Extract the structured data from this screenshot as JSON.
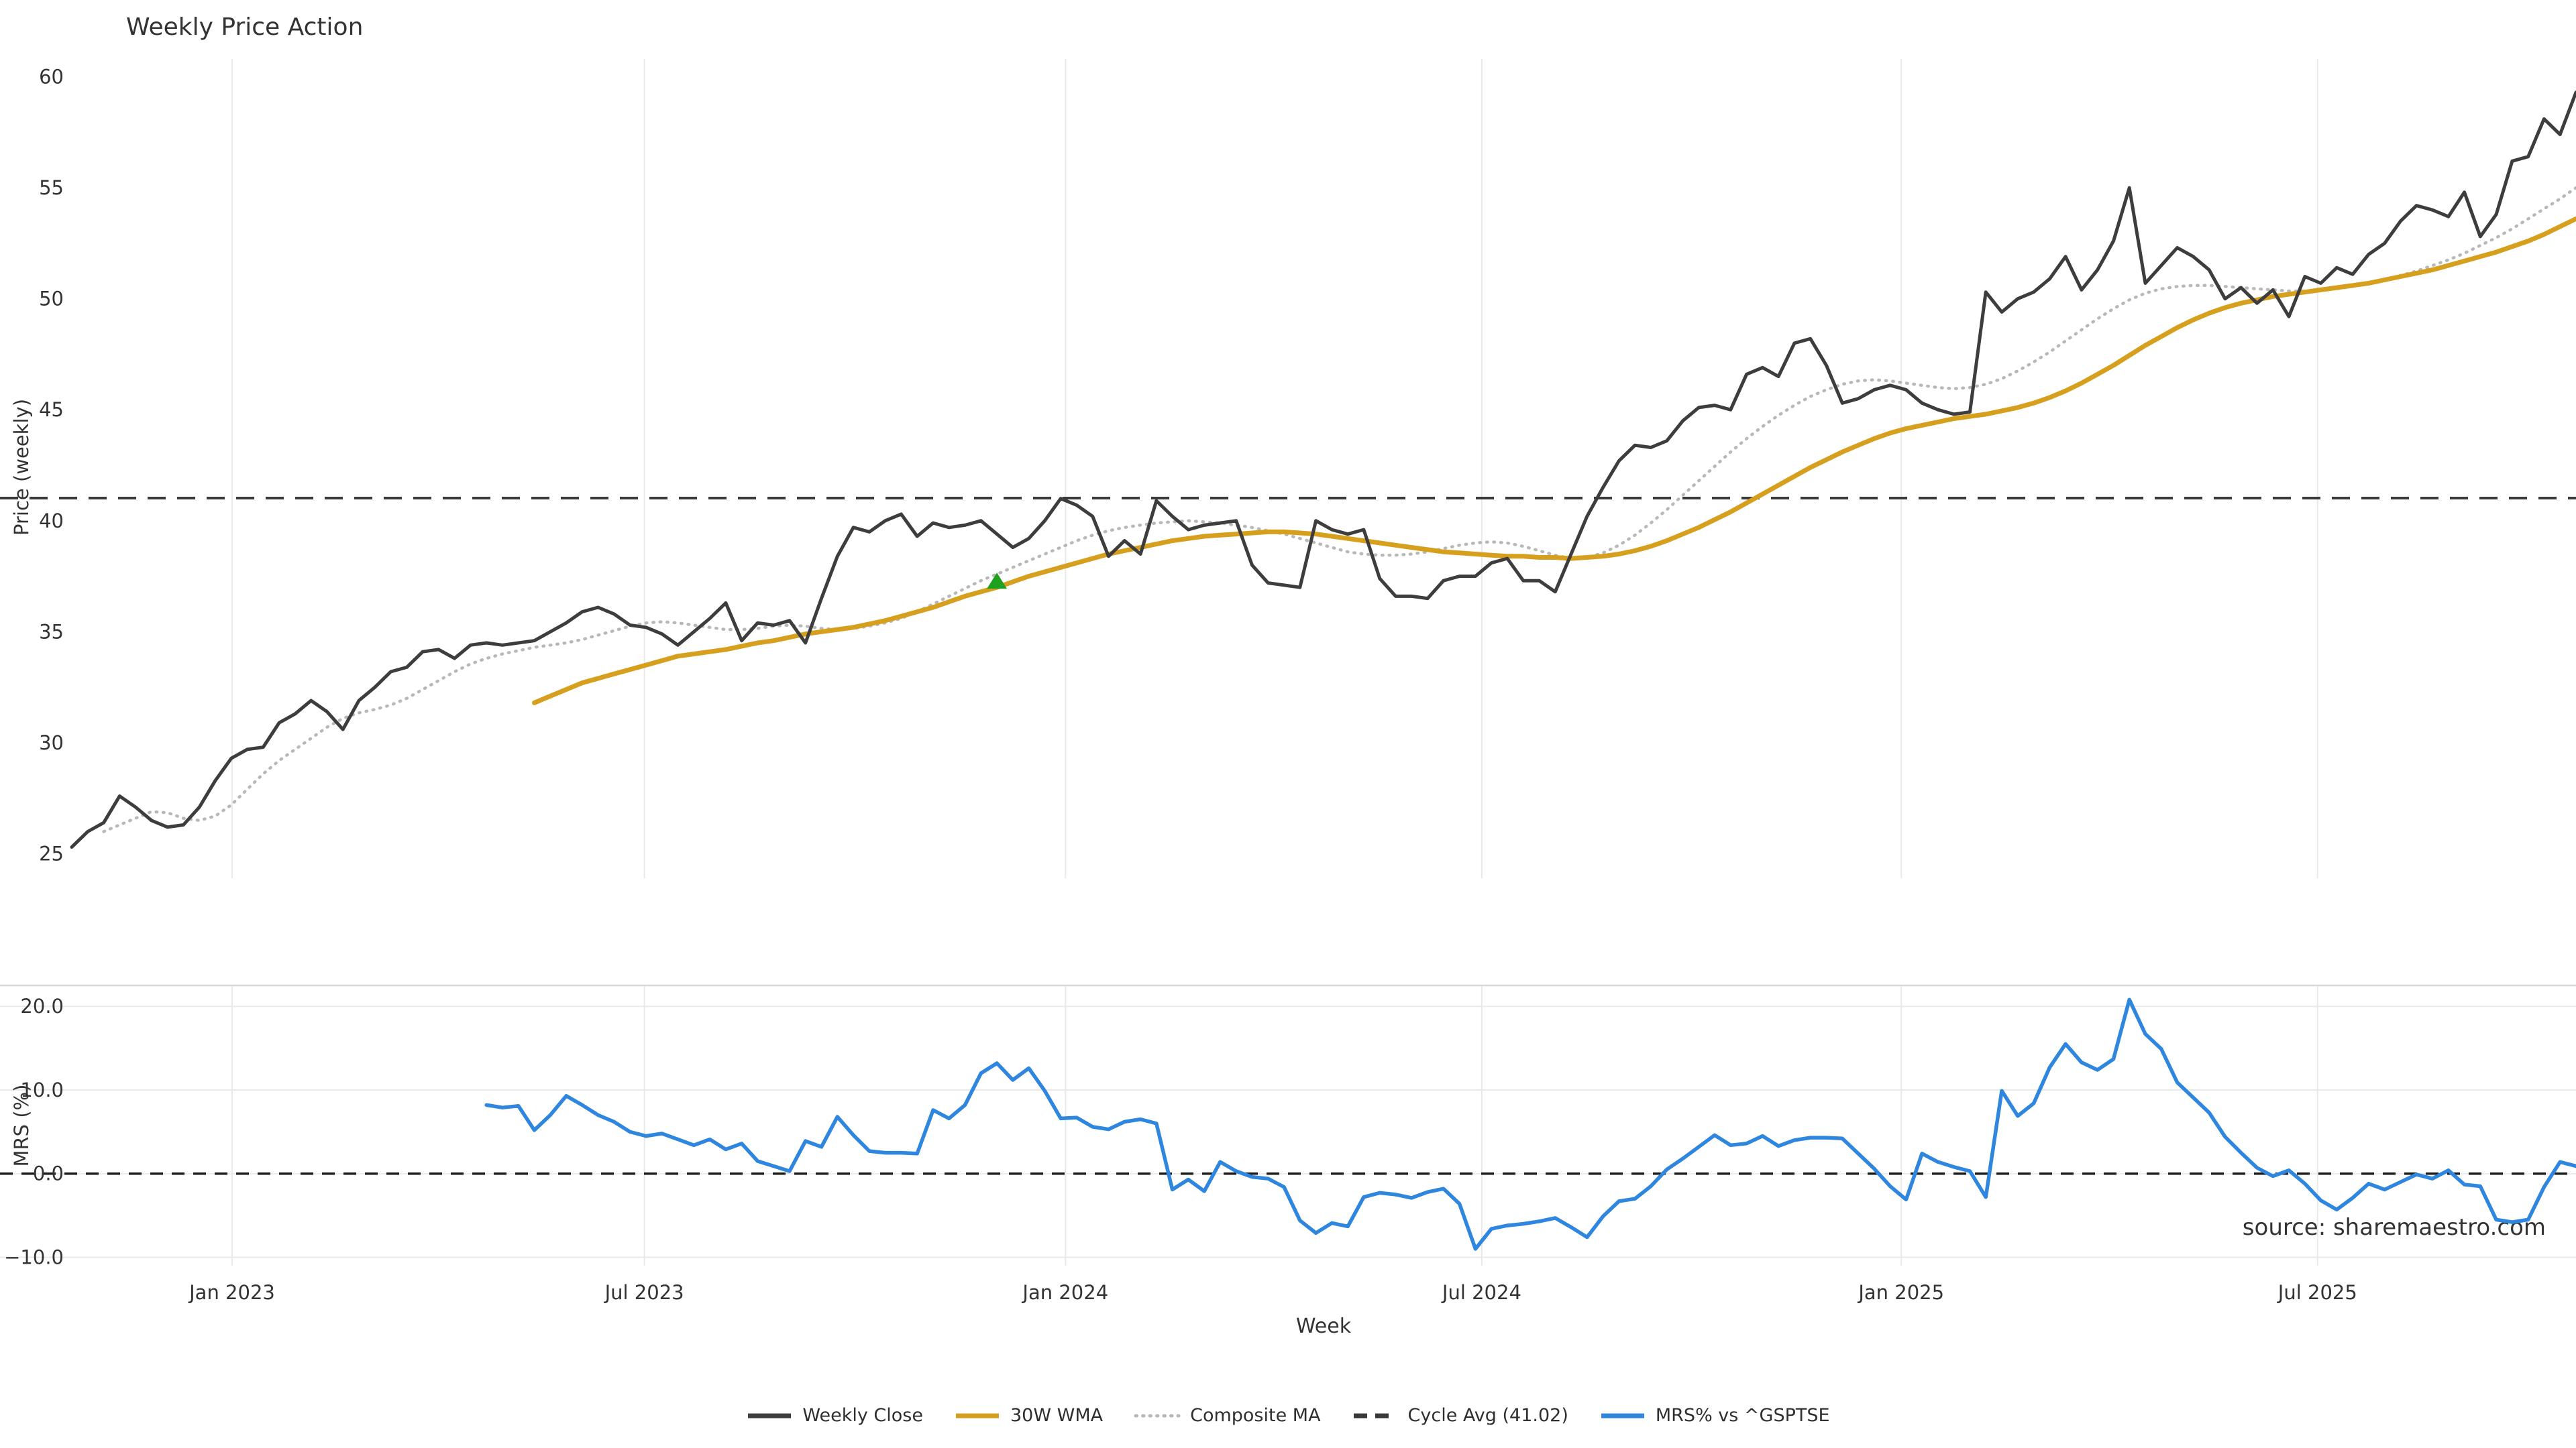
{
  "title": "Weekly Price Action",
  "watermark": "source: sharemaestro.com",
  "axis_labels": {
    "x": "Week",
    "y_top": "Price (weekly)",
    "y_bottom": "MRS (%)"
  },
  "colors": {
    "weekly_close": "#3d3d3d",
    "wma": "#d6a01e",
    "composite": "#b8b8b8",
    "cycle_avg": "#3a3a3a",
    "mrs": "#2e86de",
    "marker_green": "#1fa01f",
    "grid": "#e9e9e9",
    "spine": "#d8d8d8",
    "tick_text": "#333333",
    "watermark": "#9b9b9b"
  },
  "legend": [
    {
      "label": "Weekly Close",
      "color": "#3d3d3d",
      "style": "solid"
    },
    {
      "label": "30W WMA",
      "color": "#d6a01e",
      "style": "solid"
    },
    {
      "label": "Composite MA",
      "color": "#b8b8b8",
      "style": "dotted"
    },
    {
      "label": "Cycle Avg (41.02)",
      "color": "#3a3a3a",
      "style": "dashed"
    },
    {
      "label": "MRS% vs ^GSPTSE",
      "color": "#2e86de",
      "style": "solid"
    }
  ],
  "chart_data": [
    {
      "type": "line",
      "panel": "price",
      "title": "Weekly Price Action",
      "xlabel": "",
      "ylabel": "Price (weekly)",
      "weeks_total": 158,
      "x_start": "late Oct 2022, weekly steps",
      "ylim": [
        23.9,
        60.8
      ],
      "yticks": [
        25,
        30,
        35,
        40,
        45,
        50,
        55,
        60
      ],
      "xticks": [
        {
          "week": 10.05,
          "label": "Jan 2023"
        },
        {
          "week": 35.9,
          "label": "Jul 2023"
        },
        {
          "week": 62.3,
          "label": "Jan 2024"
        },
        {
          "week": 88.4,
          "label": "Jul 2024"
        },
        {
          "week": 114.7,
          "label": "Jan 2025"
        },
        {
          "week": 140.8,
          "label": "Jul 2025"
        }
      ],
      "grid": "vertical-only",
      "cycle_avg": 41.02,
      "buy_marker": {
        "week": 58,
        "value": 37.3,
        "shape": "triangle-up",
        "color": "#1fa01f"
      },
      "series": [
        {
          "name": "Weekly Close",
          "start_week": 0,
          "values": [
            25.3,
            26.0,
            26.4,
            27.6,
            27.1,
            26.5,
            26.2,
            26.3,
            27.1,
            28.3,
            29.3,
            29.7,
            29.8,
            30.9,
            31.3,
            31.9,
            31.4,
            30.6,
            31.9,
            32.5,
            33.2,
            33.4,
            34.1,
            34.2,
            33.8,
            34.4,
            34.5,
            34.4,
            34.5,
            34.6,
            35.0,
            35.4,
            35.9,
            36.1,
            35.8,
            35.3,
            35.2,
            34.9,
            34.4,
            35.0,
            35.6,
            36.3,
            34.6,
            35.4,
            35.3,
            35.5,
            34.5,
            36.5,
            38.4,
            39.7,
            39.5,
            40.0,
            40.3,
            39.3,
            39.9,
            39.7,
            39.8,
            40.0,
            39.4,
            38.8,
            39.2,
            40.0,
            41.0,
            40.7,
            40.2,
            38.4,
            39.1,
            38.5,
            40.9,
            40.2,
            39.6,
            39.8,
            39.9,
            40.0,
            38.0,
            37.2,
            37.1,
            37.0,
            40.0,
            39.6,
            39.4,
            39.6,
            37.4,
            36.6,
            36.6,
            36.5,
            37.3,
            37.5,
            37.5,
            38.1,
            38.3,
            37.3,
            37.3,
            36.8,
            38.5,
            40.2,
            41.5,
            42.7,
            43.4,
            43.3,
            43.6,
            44.5,
            45.1,
            45.2,
            45.0,
            46.6,
            46.9,
            46.5,
            48.0,
            48.2,
            47.0,
            45.3,
            45.5,
            45.9,
            46.1,
            45.9,
            45.3,
            45.0,
            44.8,
            44.9,
            50.3,
            49.4,
            50.0,
            50.3,
            50.9,
            51.9,
            50.4,
            51.3,
            52.6,
            55.0,
            50.7,
            51.5,
            52.3,
            51.9,
            51.3,
            50.0,
            50.5,
            49.8,
            50.4,
            49.2,
            51.0,
            50.7,
            51.4,
            51.1,
            52.0,
            52.5,
            53.5,
            54.2,
            54.0,
            53.7,
            54.8,
            52.8,
            53.8,
            56.2,
            56.4,
            58.1,
            57.4,
            59.3
          ]
        },
        {
          "name": "30W WMA",
          "start_week": 29,
          "values": [
            31.8,
            32.1,
            32.4,
            32.7,
            32.9,
            33.1,
            33.3,
            33.5,
            33.7,
            33.9,
            34.0,
            34.1,
            34.2,
            34.35,
            34.5,
            34.6,
            34.75,
            34.9,
            35.0,
            35.1,
            35.2,
            35.35,
            35.5,
            35.7,
            35.9,
            36.1,
            36.35,
            36.6,
            36.8,
            37.0,
            37.25,
            37.5,
            37.7,
            37.9,
            38.1,
            38.3,
            38.5,
            38.65,
            38.8,
            38.95,
            39.1,
            39.2,
            39.3,
            39.35,
            39.4,
            39.45,
            39.5,
            39.5,
            39.45,
            39.4,
            39.3,
            39.2,
            39.1,
            39.0,
            38.9,
            38.8,
            38.7,
            38.6,
            38.55,
            38.5,
            38.45,
            38.4,
            38.4,
            38.35,
            38.35,
            38.3,
            38.35,
            38.4,
            38.5,
            38.65,
            38.85,
            39.1,
            39.4,
            39.7,
            40.05,
            40.4,
            40.8,
            41.2,
            41.6,
            42.0,
            42.4,
            42.75,
            43.1,
            43.4,
            43.7,
            43.95,
            44.15,
            44.3,
            44.45,
            44.6,
            44.7,
            44.8,
            44.95,
            45.1,
            45.3,
            45.55,
            45.85,
            46.2,
            46.6,
            47.0,
            47.45,
            47.9,
            48.3,
            48.7,
            49.05,
            49.35,
            49.6,
            49.8,
            49.95,
            50.1,
            50.2,
            50.3,
            50.4,
            50.5,
            50.6,
            50.7,
            50.85,
            51.0,
            51.15,
            51.3,
            51.5,
            51.7,
            51.9,
            52.1,
            52.35,
            52.6,
            52.9,
            53.25,
            53.6
          ]
        },
        {
          "name": "Composite MA",
          "start_week": 2,
          "values": [
            26.0,
            26.3,
            26.6,
            26.9,
            26.85,
            26.6,
            26.5,
            26.7,
            27.2,
            27.9,
            28.6,
            29.2,
            29.7,
            30.2,
            30.7,
            31.1,
            31.35,
            31.5,
            31.7,
            32.0,
            32.4,
            32.8,
            33.2,
            33.55,
            33.8,
            34.0,
            34.15,
            34.3,
            34.4,
            34.5,
            34.65,
            34.85,
            35.05,
            35.25,
            35.4,
            35.45,
            35.4,
            35.3,
            35.2,
            35.1,
            35.1,
            35.15,
            35.25,
            35.3,
            35.25,
            35.15,
            35.1,
            35.15,
            35.25,
            35.4,
            35.6,
            35.9,
            36.25,
            36.6,
            36.95,
            37.3,
            37.6,
            37.9,
            38.2,
            38.5,
            38.8,
            39.1,
            39.35,
            39.55,
            39.7,
            39.8,
            39.9,
            39.95,
            40.0,
            39.95,
            39.9,
            39.8,
            39.7,
            39.55,
            39.4,
            39.2,
            39.0,
            38.8,
            38.6,
            38.5,
            38.45,
            38.45,
            38.5,
            38.6,
            38.75,
            38.9,
            39.0,
            39.05,
            39.0,
            38.85,
            38.65,
            38.45,
            38.3,
            38.35,
            38.55,
            38.9,
            39.35,
            39.9,
            40.5,
            41.15,
            41.8,
            42.45,
            43.1,
            43.7,
            44.25,
            44.75,
            45.2,
            45.6,
            45.9,
            46.15,
            46.3,
            46.35,
            46.3,
            46.2,
            46.1,
            46.0,
            45.95,
            46.0,
            46.15,
            46.4,
            46.75,
            47.15,
            47.6,
            48.1,
            48.6,
            49.1,
            49.55,
            49.95,
            50.25,
            50.45,
            50.55,
            50.6,
            50.6,
            50.55,
            50.5,
            50.45,
            50.4,
            50.35,
            50.35,
            50.4,
            50.45,
            50.55,
            50.7,
            50.85,
            51.05,
            51.25,
            51.5,
            51.75,
            52.05,
            52.4,
            52.75,
            53.15,
            53.6,
            54.05,
            54.5,
            55.0
          ]
        }
      ]
    },
    {
      "type": "line",
      "panel": "mrs",
      "xlabel": "Week",
      "ylabel": "MRS (%)",
      "weeks_total": 158,
      "ylim": [
        -11.0,
        22.5
      ],
      "yticks": [
        -10.0,
        0.0,
        10.0,
        20.0
      ],
      "ytick_labels": [
        "−10.0",
        "0.0",
        "10.0",
        "20.0"
      ],
      "grid": "both",
      "zero_line_dashed": 0.0,
      "series": [
        {
          "name": "MRS% vs ^GSPTSE",
          "start_week": 26,
          "values": [
            8.2,
            7.9,
            8.1,
            5.2,
            7.0,
            9.3,
            8.2,
            7.0,
            6.2,
            5.0,
            4.5,
            4.8,
            4.1,
            3.4,
            4.1,
            2.9,
            3.6,
            1.5,
            0.9,
            0.3,
            3.9,
            3.2,
            6.8,
            4.6,
            2.7,
            2.5,
            2.5,
            2.4,
            7.6,
            6.6,
            8.2,
            12.0,
            13.2,
            11.2,
            12.6,
            9.9,
            6.6,
            6.7,
            5.6,
            5.3,
            6.2,
            6.5,
            6.0,
            -1.9,
            -0.7,
            -2.1,
            1.4,
            0.3,
            -0.4,
            -0.6,
            -1.6,
            -5.6,
            -7.1,
            -5.9,
            -6.3,
            -2.8,
            -2.3,
            -2.5,
            -2.9,
            -2.2,
            -1.8,
            -3.6,
            -9.0,
            -6.6,
            -6.2,
            -6.0,
            -5.7,
            -5.3,
            -6.4,
            -7.6,
            -5.1,
            -3.3,
            -3.0,
            -1.5,
            0.5,
            1.8,
            3.2,
            4.6,
            3.4,
            3.6,
            4.5,
            3.3,
            4.0,
            4.3,
            4.3,
            4.2,
            2.4,
            0.6,
            -1.5,
            -3.1,
            2.4,
            1.4,
            0.8,
            0.3,
            -2.8,
            9.9,
            6.9,
            8.4,
            12.7,
            15.5,
            13.3,
            12.4,
            13.7,
            20.8,
            16.7,
            14.9,
            10.9,
            9.1,
            7.3,
            4.4,
            2.5,
            0.7,
            -0.3,
            0.4,
            -1.2,
            -3.2,
            -4.3,
            -2.9,
            -1.2,
            -1.9,
            -1.0,
            -0.1,
            -0.6,
            0.4,
            -1.3,
            -1.5,
            -5.5,
            -5.8,
            -5.5,
            -1.6,
            1.4,
            0.9
          ]
        }
      ]
    }
  ]
}
